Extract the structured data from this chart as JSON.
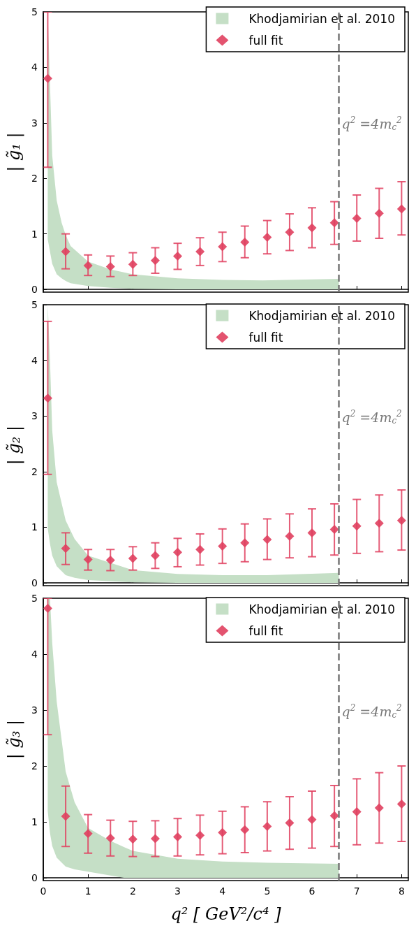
{
  "chart_data": [
    {
      "type": "scatter",
      "ylabel": "| g̃₁ |",
      "xlim": [
        0,
        8.15
      ],
      "xticks": [
        0,
        1,
        2,
        3,
        4,
        5,
        6,
        7,
        8
      ],
      "ylim": [
        -0.05,
        5
      ],
      "yticks": [
        0,
        1,
        2,
        3,
        4,
        5
      ],
      "tick_labels": "y",
      "legend": "top right",
      "series": [
        {
          "type": "area",
          "name": "Khodjamirian et al. 2010",
          "color": "#c5dfc6",
          "x": [
            0.1,
            0.2,
            0.3,
            0.41,
            0.5,
            0.61,
            1.0,
            1.5,
            2.0,
            3.0,
            4.0,
            4.9,
            6.6
          ],
          "values": [
            null,
            null,
            null,
            null,
            null,
            null,
            null,
            null,
            null,
            null,
            null,
            null,
            null
          ],
          "lower": [
            0.9,
            0.46,
            0.27,
            0.2,
            0.15,
            0.11,
            0.06,
            0.03,
            0.01,
            0,
            0,
            0,
            0
          ],
          "upper": [
            5.0,
            2.41,
            1.6,
            1.2,
            0.98,
            0.78,
            0.5,
            0.36,
            0.27,
            0.2,
            0.17,
            0.16,
            0.19
          ]
        },
        {
          "type": "scatter",
          "name": "full fit",
          "color": "#e0405f",
          "marker": "diamond",
          "x": [
            0.1,
            0.5,
            1,
            1.5,
            2,
            2.5,
            3,
            3.5,
            4,
            4.5,
            5,
            5.5,
            6,
            6.5,
            7,
            7.5,
            8
          ],
          "values": [
            3.8,
            0.68,
            0.43,
            0.41,
            0.45,
            0.52,
            0.6,
            0.68,
            0.77,
            0.85,
            0.94,
            1.03,
            1.11,
            1.2,
            1.28,
            1.37,
            1.45
          ],
          "errors": [
            [
              2.2,
              5.0
            ],
            [
              0.37,
              1.0
            ],
            [
              0.25,
              0.62
            ],
            [
              0.23,
              0.6
            ],
            [
              0.25,
              0.66
            ],
            [
              0.29,
              0.75
            ],
            [
              0.36,
              0.83
            ],
            [
              0.43,
              0.93
            ],
            [
              0.5,
              1.03
            ],
            [
              0.57,
              1.14
            ],
            [
              0.64,
              1.24
            ],
            [
              0.7,
              1.36
            ],
            [
              0.75,
              1.47
            ],
            [
              0.81,
              1.58
            ],
            [
              0.87,
              1.7
            ],
            [
              0.92,
              1.82
            ],
            [
              0.98,
              1.94
            ]
          ]
        }
      ],
      "ref_lines": [
        {
          "axis": "x",
          "value": 6.6,
          "color": "#777777",
          "line_style": "dashed"
        }
      ],
      "annotations": [
        "q$^{2}$ =4m$_{c}$$^{2}$"
      ]
    },
    {
      "type": "scatter",
      "ylabel": "| g̃₂ |",
      "xlim": [
        0,
        8.15
      ],
      "xticks": [
        0,
        1,
        2,
        3,
        4,
        5,
        6,
        7,
        8
      ],
      "ylim": [
        -0.05,
        5
      ],
      "yticks": [
        0,
        1,
        2,
        3,
        4,
        5
      ],
      "tick_labels": "y",
      "legend": "top right",
      "series": [
        {
          "type": "area",
          "name": "Khodjamirian et al. 2010",
          "color": "#c5dfc6",
          "x": [
            0.1,
            0.15,
            0.2,
            0.3,
            0.5,
            0.7,
            1.0,
            2.0,
            3.0,
            4.0,
            5.0,
            6.6
          ],
          "values": [
            null,
            null,
            null,
            null,
            null,
            null,
            null,
            null,
            null,
            null,
            null,
            null
          ],
          "lower": [
            0.98,
            0.7,
            0.49,
            0.3,
            0.14,
            0.09,
            0.05,
            0.01,
            0,
            0,
            0,
            0
          ],
          "upper": [
            5.0,
            4.0,
            2.74,
            1.81,
            1.12,
            0.79,
            0.49,
            0.23,
            0.16,
            0.14,
            0.14,
            0.18
          ]
        },
        {
          "type": "scatter",
          "name": "full fit",
          "color": "#e0405f",
          "marker": "diamond",
          "x": [
            0.1,
            0.5,
            1,
            1.5,
            2,
            2.5,
            3,
            3.5,
            4,
            4.5,
            5,
            5.5,
            6,
            6.5,
            7,
            7.5,
            8
          ],
          "values": [
            3.32,
            0.62,
            0.42,
            0.41,
            0.44,
            0.49,
            0.55,
            0.6,
            0.66,
            0.72,
            0.78,
            0.84,
            0.9,
            0.96,
            1.02,
            1.07,
            1.12
          ],
          "errors": [
            [
              1.95,
              4.7
            ],
            [
              0.33,
              0.9
            ],
            [
              0.23,
              0.6
            ],
            [
              0.22,
              0.6
            ],
            [
              0.23,
              0.65
            ],
            [
              0.26,
              0.72
            ],
            [
              0.29,
              0.8
            ],
            [
              0.32,
              0.88
            ],
            [
              0.35,
              0.97
            ],
            [
              0.38,
              1.06
            ],
            [
              0.42,
              1.15
            ],
            [
              0.45,
              1.24
            ],
            [
              0.47,
              1.33
            ],
            [
              0.5,
              1.42
            ],
            [
              0.53,
              1.5
            ],
            [
              0.56,
              1.58
            ],
            [
              0.59,
              1.67
            ]
          ]
        }
      ],
      "ref_lines": [
        {
          "axis": "x",
          "value": 6.6,
          "color": "#777777",
          "line_style": "dashed"
        }
      ],
      "annotations": [
        "q$^{2}$ =4m$_{c}$$^{2}$"
      ]
    },
    {
      "type": "scatter",
      "xlabel": "q² [ GeV²/c⁴ ]",
      "ylabel": "| g̃₃ |",
      "xlim": [
        0,
        8.15
      ],
      "xticks": [
        0,
        1,
        2,
        3,
        4,
        5,
        6,
        7,
        8
      ],
      "ylim": [
        -0.05,
        5
      ],
      "yticks": [
        0,
        1,
        2,
        3,
        4,
        5
      ],
      "legend": "top right",
      "series": [
        {
          "type": "area",
          "name": "Khodjamirian et al. 2010",
          "color": "#c5dfc6",
          "x": [
            0.1,
            0.15,
            0.2,
            0.3,
            0.5,
            0.7,
            1.0,
            1.5,
            1.8,
            2.0,
            3.0,
            4.0,
            5.0,
            6.6
          ],
          "values": [
            null,
            null,
            null,
            null,
            null,
            null,
            null,
            null,
            null,
            null,
            null,
            null,
            null,
            null
          ],
          "lower": [
            1.19,
            0.8,
            0.57,
            0.36,
            0.2,
            0.15,
            0.11,
            0.04,
            0,
            0,
            0,
            0,
            0,
            0
          ],
          "upper": [
            5.0,
            5.0,
            4.2,
            3.15,
            1.9,
            1.35,
            0.89,
            0.66,
            0.55,
            0.48,
            0.34,
            0.29,
            0.27,
            0.25
          ]
        },
        {
          "type": "scatter",
          "name": "full fit",
          "color": "#e0405f",
          "marker": "diamond",
          "x": [
            0.1,
            0.5,
            1,
            1.5,
            2,
            2.5,
            3,
            3.5,
            4,
            4.5,
            5,
            5.5,
            6,
            6.5,
            7,
            7.5,
            8
          ],
          "values": [
            4.82,
            1.1,
            0.79,
            0.71,
            0.69,
            0.7,
            0.73,
            0.76,
            0.81,
            0.86,
            0.92,
            0.98,
            1.04,
            1.11,
            1.18,
            1.25,
            1.32
          ],
          "errors": [
            [
              2.56,
              5.0
            ],
            [
              0.56,
              1.64
            ],
            [
              0.44,
              1.13
            ],
            [
              0.39,
              1.03
            ],
            [
              0.38,
              1.01
            ],
            [
              0.38,
              1.02
            ],
            [
              0.39,
              1.06
            ],
            [
              0.41,
              1.12
            ],
            [
              0.43,
              1.19
            ],
            [
              0.45,
              1.27
            ],
            [
              0.48,
              1.36
            ],
            [
              0.51,
              1.45
            ],
            [
              0.53,
              1.55
            ],
            [
              0.56,
              1.65
            ],
            [
              0.59,
              1.77
            ],
            [
              0.62,
              1.88
            ],
            [
              0.65,
              2.0
            ]
          ]
        }
      ],
      "ref_lines": [
        {
          "axis": "x",
          "value": 6.6,
          "color": "#777777",
          "line_style": "dashed"
        }
      ],
      "annotations": [
        "q$^{2}$ =4m$_{c}$$^{2}$"
      ]
    }
  ]
}
